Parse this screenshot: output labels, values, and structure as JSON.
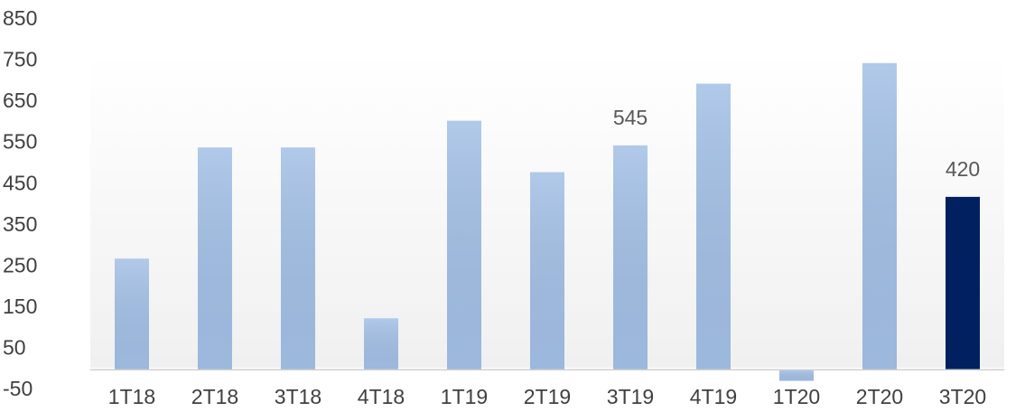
{
  "chart_data": {
    "type": "bar",
    "categories": [
      "1T18",
      "2T18",
      "3T18",
      "4T18",
      "1T19",
      "2T19",
      "3T19",
      "4T19",
      "1T20",
      "2T20",
      "3T20"
    ],
    "values": [
      270,
      540,
      540,
      125,
      605,
      480,
      545,
      695,
      -27,
      745,
      420
    ],
    "value_labels": [
      null,
      null,
      null,
      null,
      null,
      null,
      "545",
      null,
      null,
      null,
      "420"
    ],
    "colors": [
      "#a3c0e6",
      "#a3c0e6",
      "#a3c0e6",
      "#a3c0e6",
      "#a3c0e6",
      "#a3c0e6",
      "#a3c0e6",
      "#a3c0e6",
      "#a3c0e6",
      "#a3c0e6",
      "#002060"
    ],
    "ylim": [
      -50,
      850
    ],
    "yticks": [
      -50,
      50,
      150,
      250,
      350,
      450,
      550,
      650,
      750,
      850
    ],
    "grid": false
  }
}
